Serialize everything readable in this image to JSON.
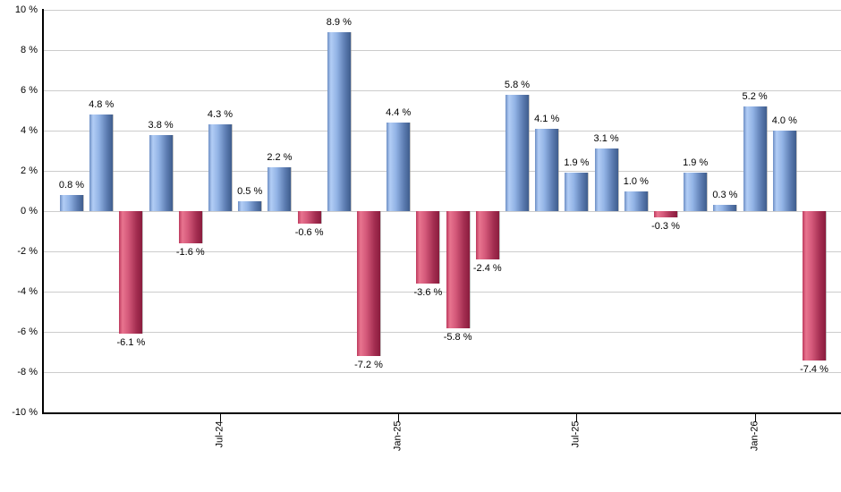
{
  "chart_data": {
    "type": "bar",
    "title": "",
    "xlabel": "",
    "ylabel": "",
    "ylim": [
      -10,
      10
    ],
    "grid": true,
    "legend": false,
    "unit": "%",
    "y_ticks": [
      {
        "value": 10,
        "label": "10 %"
      },
      {
        "value": 8,
        "label": "8 %"
      },
      {
        "value": 6,
        "label": "6 %"
      },
      {
        "value": 4,
        "label": "4 %"
      },
      {
        "value": 2,
        "label": "2 %"
      },
      {
        "value": 0,
        "label": "0 %"
      },
      {
        "value": -2,
        "label": "-2 %"
      },
      {
        "value": -4,
        "label": "-4 %"
      },
      {
        "value": -6,
        "label": "-6 %"
      },
      {
        "value": -8,
        "label": "-8 %"
      },
      {
        "value": -10,
        "label": "-10 %"
      }
    ],
    "x_ticks": [
      {
        "index": 5,
        "label": "Jul-24"
      },
      {
        "index": 11,
        "label": "Jan-25"
      },
      {
        "index": 17,
        "label": "Jul-25"
      },
      {
        "index": 23,
        "label": "Jan-26"
      }
    ],
    "bars": [
      {
        "value": 0.8,
        "label": "0.8 %"
      },
      {
        "value": 4.8,
        "label": "4.8 %"
      },
      {
        "value": -6.1,
        "label": "-6.1 %"
      },
      {
        "value": 3.8,
        "label": "3.8 %"
      },
      {
        "value": -1.6,
        "label": "-1.6 %"
      },
      {
        "value": 4.3,
        "label": "4.3 %"
      },
      {
        "value": 0.5,
        "label": "0.5 %"
      },
      {
        "value": 2.2,
        "label": "2.2 %"
      },
      {
        "value": -0.6,
        "label": "-0.6 %"
      },
      {
        "value": 8.9,
        "label": "8.9 %"
      },
      {
        "value": -7.2,
        "label": "-7.2 %"
      },
      {
        "value": 4.4,
        "label": "4.4 %"
      },
      {
        "value": -3.6,
        "label": "-3.6 %"
      },
      {
        "value": -5.8,
        "label": "-5.8 %"
      },
      {
        "value": -2.4,
        "label": "-2.4 %"
      },
      {
        "value": 5.8,
        "label": "5.8 %"
      },
      {
        "value": 4.1,
        "label": "4.1 %"
      },
      {
        "value": 1.9,
        "label": "1.9 %"
      },
      {
        "value": 3.1,
        "label": "3.1 %"
      },
      {
        "value": 1.0,
        "label": "1.0 %"
      },
      {
        "value": -0.3,
        "label": "-0.3 %"
      },
      {
        "value": 1.9,
        "label": "1.9 %"
      },
      {
        "value": 0.3,
        "label": "0.3 %"
      },
      {
        "value": 5.2,
        "label": "5.2 %"
      },
      {
        "value": 4.0,
        "label": "4.0 %"
      },
      {
        "value": -7.4,
        "label": "-7.4 %"
      }
    ],
    "colors": {
      "positive_gradient": [
        [
          0,
          "#6e8fc5"
        ],
        [
          15,
          "#b2cdf5"
        ],
        [
          40,
          "#93b4e6"
        ],
        [
          75,
          "#5c7cb1"
        ],
        [
          100,
          "#3f5d8d"
        ]
      ],
      "negative_gradient": [
        [
          0,
          "#bd3a5e"
        ],
        [
          15,
          "#e8748f"
        ],
        [
          40,
          "#d4597a"
        ],
        [
          75,
          "#a42e51"
        ],
        [
          100,
          "#8a1c3d"
        ]
      ],
      "gridline": "#cccccc",
      "axis": "#000000",
      "text": "#000000",
      "background": "#ffffff"
    }
  }
}
